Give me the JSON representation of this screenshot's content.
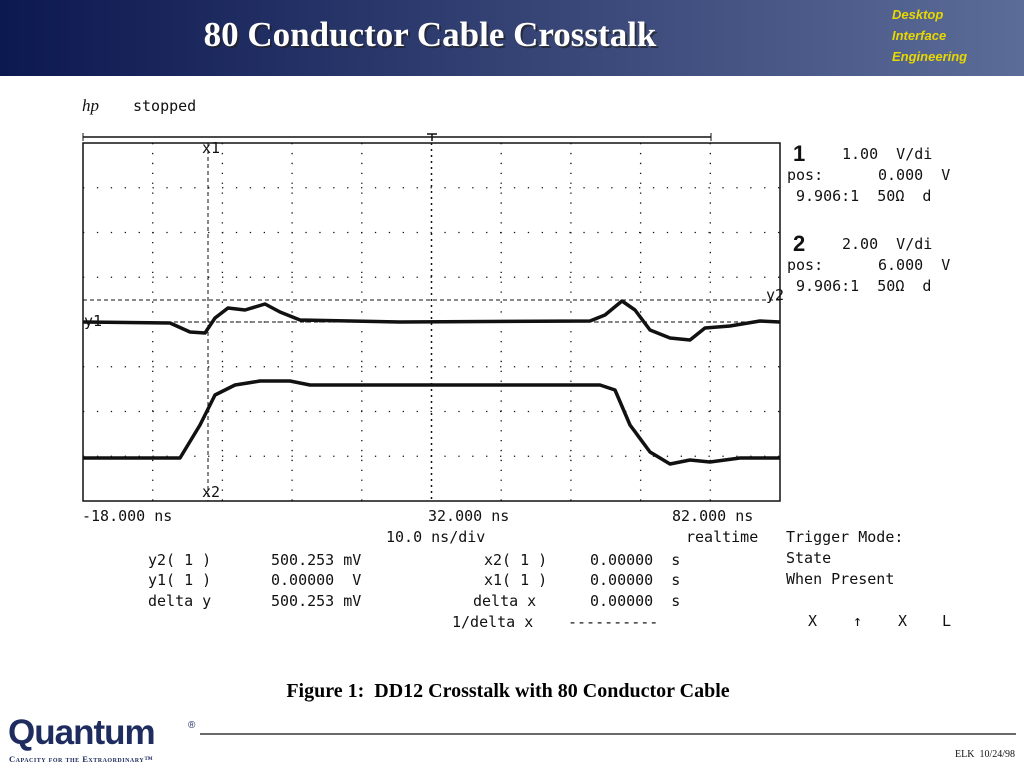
{
  "header": {
    "title": "80 Conductor Cable Crosstalk",
    "tag": [
      "Desktop",
      "Interface",
      "Engineering"
    ]
  },
  "scope": {
    "brand": "hp",
    "status": "stopped",
    "channels": [
      {
        "number": "1",
        "scale": "1.00  V/di",
        "pos_label": "pos:",
        "pos": "0.000  V",
        "probe": "9.906:1  50Ω  d"
      },
      {
        "number": "2",
        "scale": "2.00  V/di",
        "pos_label": "pos:",
        "pos": "6.000  V",
        "probe": "9.906:1  50Ω  d"
      }
    ],
    "markers": [
      "x1",
      "x2",
      "y1",
      "y2"
    ],
    "time": {
      "left": "-18.000 ns",
      "center": "32.000 ns",
      "right": "82.000 ns",
      "scale": "10.0 ns/div",
      "mode": "realtime"
    },
    "trigger": [
      "Trigger Mode:",
      "State",
      "When Present"
    ],
    "readout": [
      [
        "y2( 1 )",
        "500.253 mV",
        "x2( 1 )",
        "0.00000  s"
      ],
      [
        "y1( 1 )",
        "0.00000  V",
        "x1( 1 )",
        "0.00000  s"
      ],
      [
        "delta y",
        "500.253 mV",
        "delta x",
        "0.00000  s"
      ],
      [
        "1/delta x",
        "----------"
      ]
    ],
    "symbols": [
      "X",
      "↑",
      "X",
      "L"
    ]
  },
  "caption": "Figure 1:  DD12 Crosstalk with 80 Conductor Cable",
  "footer": {
    "logo": "Quantum",
    "registered": "®",
    "tagline": "Capacity for the Extraordinary™",
    "date": "ELK  10/24/98"
  }
}
